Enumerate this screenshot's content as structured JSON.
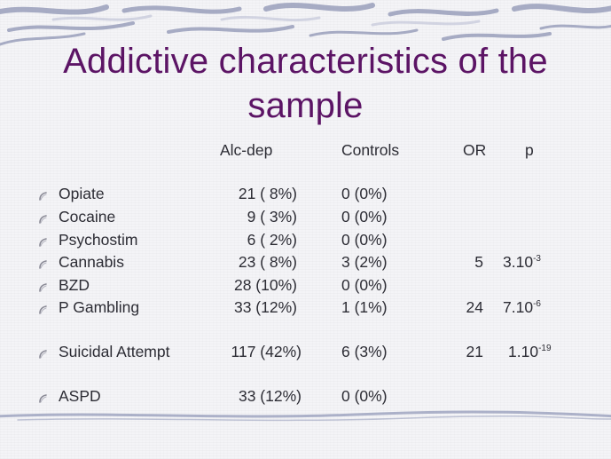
{
  "slide": {
    "title_line1": "Addictive characteristics of the",
    "title_line2": "sample",
    "title_color": "#5c1465"
  },
  "table": {
    "headers": {
      "alc": "Alc-dep",
      "controls": "Controls",
      "or": "OR",
      "p": "p"
    },
    "rows": [
      {
        "label": "Opiate",
        "alc": "21 ( 8%)",
        "controls": "0 (0%)",
        "or": "",
        "p_base": "",
        "p_exp": ""
      },
      {
        "label": "Cocaine",
        "alc": "9 ( 3%)",
        "controls": "0 (0%)",
        "or": "",
        "p_base": "",
        "p_exp": ""
      },
      {
        "label": "Psychostim",
        "alc": "6 ( 2%)",
        "controls": "0 (0%)",
        "or": "",
        "p_base": "",
        "p_exp": ""
      },
      {
        "label": "Cannabis",
        "alc": "23 ( 8%)",
        "controls": "3 (2%)",
        "or": "5",
        "p_base": "3.10",
        "p_exp": "-3"
      },
      {
        "label": "BZD",
        "alc": "28 (10%)",
        "controls": "0 (0%)",
        "or": "",
        "p_base": "",
        "p_exp": ""
      },
      {
        "label": "P Gambling",
        "alc": "33 (12%)",
        "controls": "1 (1%)",
        "or": "24",
        "p_base": "7.10",
        "p_exp": "-6"
      },
      {
        "label": "Suicidal Attempt",
        "alc": "117 (42%)",
        "controls": "6 (3%)",
        "or": "21",
        "p_base": "1.10",
        "p_exp": "-19"
      },
      {
        "label": "ASPD",
        "alc": "33 (12%)",
        "controls": "0 (0%)",
        "or": "",
        "p_base": "",
        "p_exp": ""
      }
    ]
  }
}
